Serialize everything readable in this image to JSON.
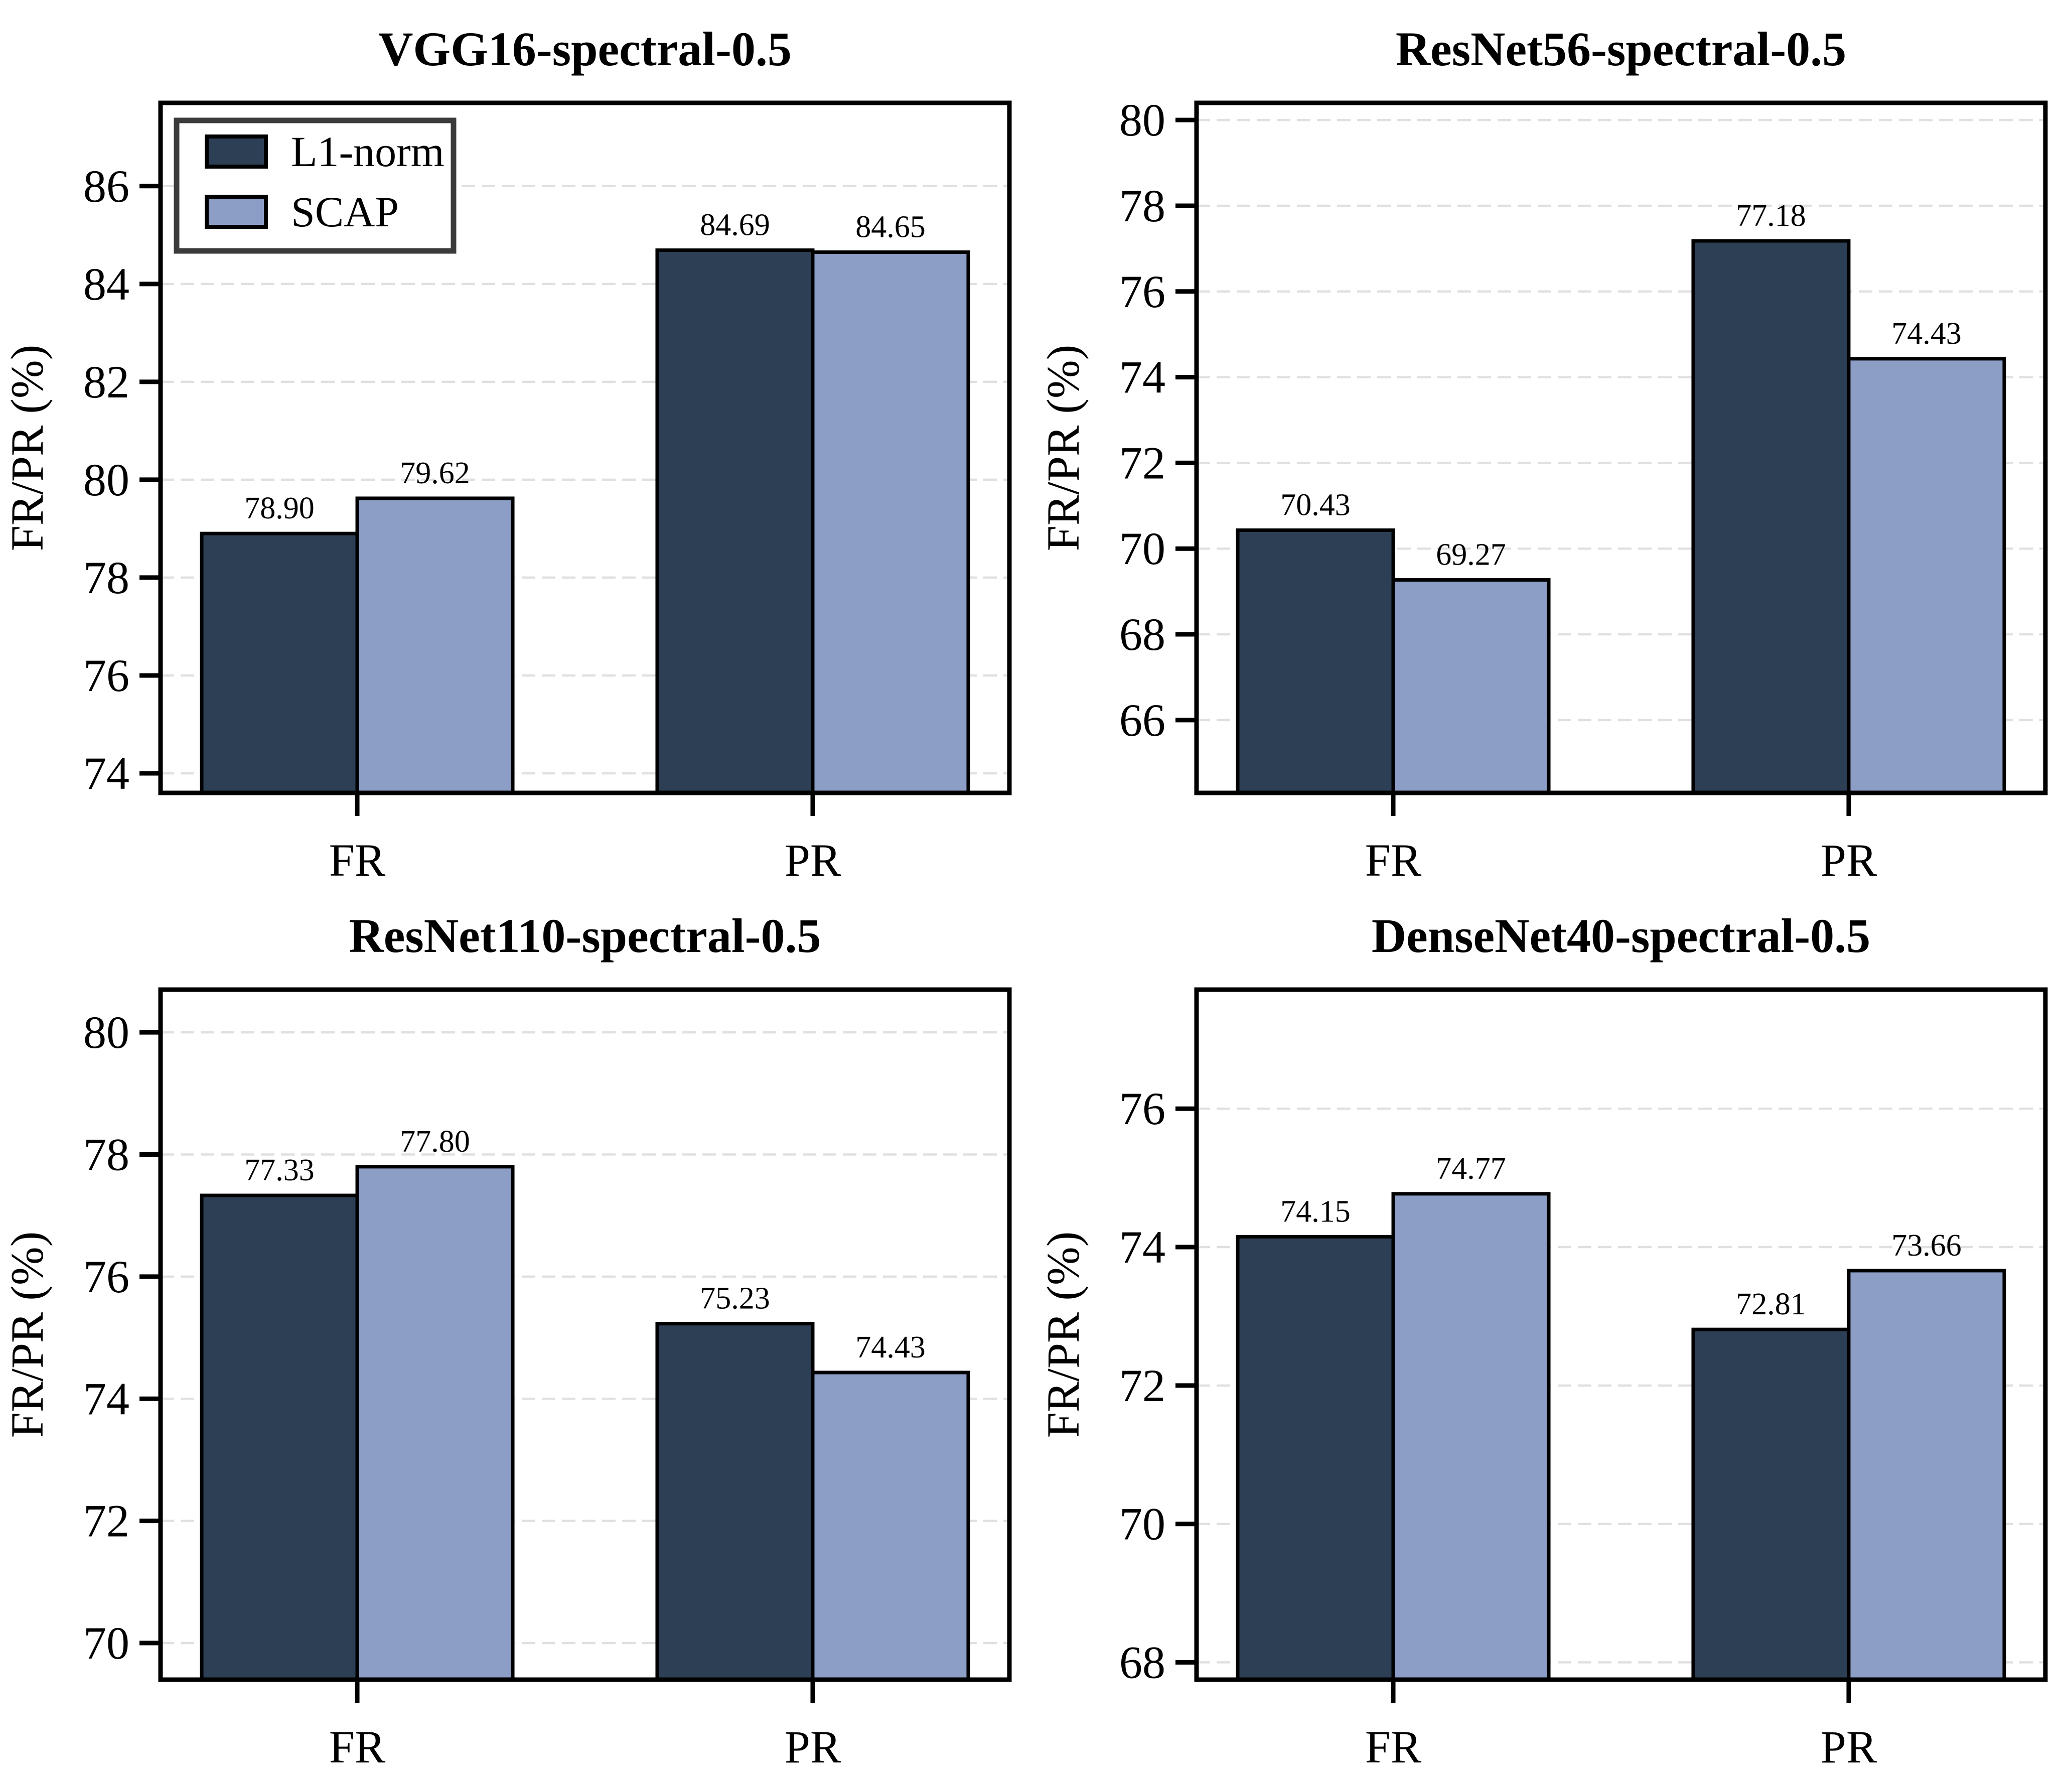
{
  "figure": {
    "background": "#ffffff",
    "ylabel": "FR/PR (%)",
    "categories": [
      "FR",
      "PR"
    ],
    "series": [
      {
        "name": "L1-norm",
        "color": "#2d3f55"
      },
      {
        "name": "SCAP",
        "color": "#8c9dc6"
      }
    ],
    "bar_edge_color": "#000000",
    "grid_color": "#e0e0e0",
    "legend_border_color": "#3b3b3b"
  },
  "chart_data": [
    {
      "type": "bar",
      "title": "VGG16-spectral-0.5",
      "xlabel": "",
      "ylabel": "FR/PR (%)",
      "categories": [
        "FR",
        "PR"
      ],
      "series": [
        {
          "name": "L1-norm",
          "values": [
            78.9,
            84.69
          ]
        },
        {
          "name": "SCAP",
          "values": [
            79.62,
            84.65
          ]
        }
      ],
      "bar_labels": [
        [
          "78.90",
          "84.69"
        ],
        [
          "79.62",
          "84.65"
        ]
      ],
      "yticks": [
        74,
        76,
        78,
        80,
        82,
        84,
        86
      ],
      "ylim": [
        73.6,
        87.7
      ],
      "grid": "horizontal-dashed",
      "legend": {
        "show": true,
        "position": "upper left",
        "entries": [
          "L1-norm",
          "SCAP"
        ]
      }
    },
    {
      "type": "bar",
      "title": "ResNet56-spectral-0.5",
      "xlabel": "",
      "ylabel": "FR/PR (%)",
      "categories": [
        "FR",
        "PR"
      ],
      "series": [
        {
          "name": "L1-norm",
          "values": [
            70.43,
            77.18
          ]
        },
        {
          "name": "SCAP",
          "values": [
            69.27,
            74.43
          ]
        }
      ],
      "bar_labels": [
        [
          "70.43",
          "77.18"
        ],
        [
          "69.27",
          "74.43"
        ]
      ],
      "yticks": [
        66,
        68,
        70,
        72,
        74,
        76,
        78,
        80
      ],
      "ylim": [
        64.3,
        80.4
      ],
      "grid": "horizontal-dashed",
      "legend": {
        "show": false,
        "position": "",
        "entries": []
      }
    },
    {
      "type": "bar",
      "title": "ResNet110-spectral-0.5",
      "xlabel": "",
      "ylabel": "FR/PR (%)",
      "categories": [
        "FR",
        "PR"
      ],
      "series": [
        {
          "name": "L1-norm",
          "values": [
            77.33,
            75.23
          ]
        },
        {
          "name": "SCAP",
          "values": [
            77.8,
            74.43
          ]
        }
      ],
      "bar_labels": [
        [
          "77.33",
          "75.23"
        ],
        [
          "77.80",
          "74.43"
        ]
      ],
      "yticks": [
        70,
        72,
        74,
        76,
        78,
        80
      ],
      "ylim": [
        69.4,
        80.7
      ],
      "grid": "horizontal-dashed",
      "legend": {
        "show": false,
        "position": "",
        "entries": []
      }
    },
    {
      "type": "bar",
      "title": "DenseNet40-spectral-0.5",
      "xlabel": "",
      "ylabel": "FR/PR (%)",
      "categories": [
        "FR",
        "PR"
      ],
      "series": [
        {
          "name": "L1-norm",
          "values": [
            74.15,
            72.81
          ]
        },
        {
          "name": "SCAP",
          "values": [
            74.77,
            73.66
          ]
        }
      ],
      "bar_labels": [
        [
          "74.15",
          "72.81"
        ],
        [
          "74.77",
          "73.66"
        ]
      ],
      "yticks": [
        68,
        70,
        72,
        74,
        76
      ],
      "ylim": [
        67.75,
        77.72
      ],
      "grid": "horizontal-dashed",
      "legend": {
        "show": false,
        "position": "",
        "entries": []
      }
    }
  ]
}
